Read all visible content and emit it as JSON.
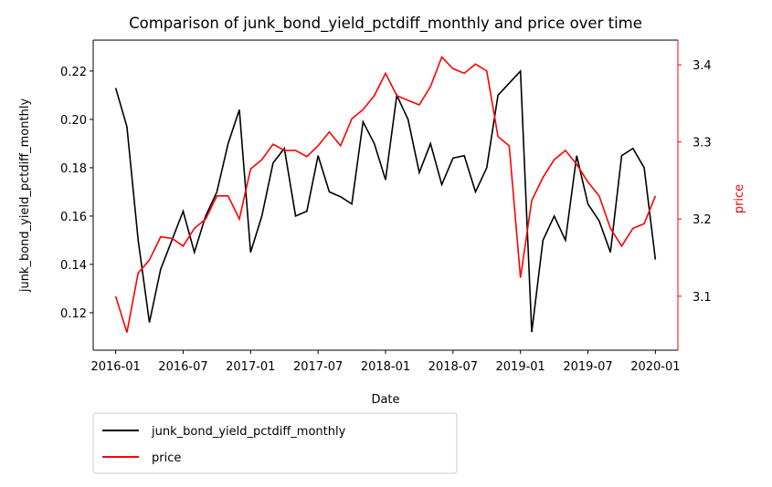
{
  "chart_data": {
    "type": "line",
    "title": "Comparison of junk_bond_yield_pctdiff_monthly and price over time",
    "x_label": "Date",
    "y_label": "junk_bond_yield_pctdiff_monthly",
    "y2_label": "price",
    "x": [
      "2016-01",
      "2016-02",
      "2016-03",
      "2016-04",
      "2016-05",
      "2016-06",
      "2016-07",
      "2016-08",
      "2016-09",
      "2016-10",
      "2016-11",
      "2016-12",
      "2017-01",
      "2017-02",
      "2017-03",
      "2017-04",
      "2017-05",
      "2017-06",
      "2017-07",
      "2017-08",
      "2017-09",
      "2017-10",
      "2017-11",
      "2017-12",
      "2018-01",
      "2018-02",
      "2018-03",
      "2018-04",
      "2018-05",
      "2018-06",
      "2018-07",
      "2018-08",
      "2018-09",
      "2018-10",
      "2018-11",
      "2018-12",
      "2019-01",
      "2019-02",
      "2019-03",
      "2019-04",
      "2019-05",
      "2019-06",
      "2019-07",
      "2019-08",
      "2019-09",
      "2019-10",
      "2019-11",
      "2019-12",
      "2020-01"
    ],
    "xlim": [
      "2015-11",
      "2020-03"
    ],
    "xticks": [
      "2016-01",
      "2016-07",
      "2017-01",
      "2017-07",
      "2018-01",
      "2018-07",
      "2019-01",
      "2019-07",
      "2020-01"
    ],
    "ylim": [
      0.1045,
      0.2328
    ],
    "yticks": [
      0.12,
      0.14,
      0.16,
      0.18,
      {
        "value": 0.2,
        "label": "0.20"
      },
      0.22
    ],
    "y2lim": [
      3.03,
      3.432
    ],
    "y2ticks": [
      3.1,
      3.2,
      3.3,
      3.4
    ],
    "legend": "below",
    "series": [
      {
        "name": "junk_bond_yield_pctdiff_monthly",
        "color": "#000000",
        "values": [
          0.213,
          0.197,
          0.15,
          0.116,
          0.138,
          0.15,
          0.162,
          0.145,
          0.16,
          0.17,
          0.19,
          0.204,
          0.145,
          0.16,
          0.182,
          0.188,
          0.16,
          0.162,
          0.185,
          0.17,
          0.168,
          0.165,
          0.199,
          0.19,
          0.175,
          0.21,
          0.2,
          0.178,
          0.19,
          0.173,
          0.184,
          0.185,
          0.17,
          0.18,
          0.21,
          0.215,
          0.22,
          0.112,
          0.15,
          0.16,
          0.15,
          0.185,
          0.165,
          0.158,
          0.145,
          0.185,
          0.188,
          0.18,
          0.142
        ]
      },
      {
        "name": "price",
        "color": "#ff0000",
        "axis": "y2",
        "values": [
          3.1,
          3.053,
          3.13,
          3.147,
          3.177,
          3.175,
          3.165,
          3.188,
          3.2,
          3.23,
          3.23,
          3.2,
          3.265,
          3.277,
          3.297,
          3.289,
          3.289,
          3.281,
          3.295,
          3.313,
          3.295,
          3.33,
          3.342,
          3.36,
          3.389,
          3.36,
          3.354,
          3.348,
          3.372,
          3.41,
          3.395,
          3.389,
          3.401,
          3.392,
          3.307,
          3.295,
          3.124,
          3.224,
          3.254,
          3.277,
          3.289,
          3.271,
          3.248,
          3.23,
          3.188,
          3.165,
          3.188,
          3.194,
          3.23
        ]
      }
    ]
  }
}
